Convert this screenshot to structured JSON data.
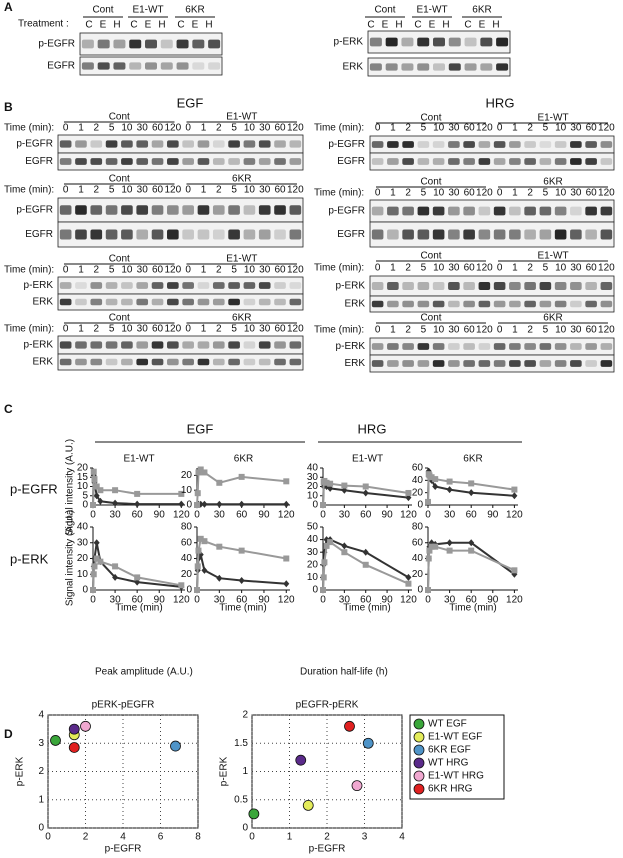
{
  "panel_a": {
    "label": "A",
    "treatment": "Treatment :",
    "lanes": [
      "C",
      "E",
      "H"
    ],
    "groups": [
      "Cont",
      "E1-WT",
      "6KR"
    ],
    "left_rows": [
      "p-EGFR",
      "EGFR"
    ],
    "right_rows": [
      "p-ERK",
      "ERK"
    ]
  },
  "panel_b": {
    "label": "B",
    "titles": [
      "EGF",
      "HRG"
    ],
    "time_label": "Time (min):",
    "lanes": [
      0,
      1,
      2,
      5,
      10,
      30,
      60,
      120
    ],
    "blots": [
      {
        "groups": [
          "Cont",
          "E1-WT"
        ],
        "rows": [
          "p-EGFR",
          "EGFR"
        ]
      },
      {
        "groups": [
          "Cont",
          "6KR"
        ],
        "rows": [
          "p-EGFR",
          "EGFR"
        ]
      },
      {
        "groups": [
          "Cont",
          "E1-WT"
        ],
        "rows": [
          "p-ERK",
          "ERK"
        ]
      },
      {
        "groups": [
          "Cont",
          "6KR"
        ],
        "rows": [
          "p-ERK",
          "ERK"
        ]
      },
      {
        "groups": [
          "Cont",
          "E1-WT"
        ],
        "rows": [
          "p-EGFR",
          "EGFR"
        ]
      },
      {
        "groups": [
          "Cont",
          "6KR"
        ],
        "rows": [
          "p-EGFR",
          "EGFR"
        ]
      },
      {
        "groups": [
          "Cont",
          "E1-WT"
        ],
        "rows": [
          "p-ERK",
          "ERK"
        ]
      },
      {
        "groups": [
          "Cont",
          "6KR"
        ],
        "rows": [
          "p-ERK",
          "ERK"
        ]
      }
    ]
  },
  "panel_c": {
    "label": "C",
    "stimuli": [
      "EGF",
      "HRG"
    ],
    "rows": [
      "p-EGFR",
      "p-ERK"
    ],
    "ylabel": "Signal intensity (A.U.)",
    "xlabel": "Time (min)"
  },
  "panel_d": {
    "label": "D",
    "headers": [
      "Peak amplitude (A.U.)",
      "Duration half-life (h)"
    ]
  },
  "chart_data": [
    {
      "type": "line",
      "title": "E1-WT",
      "x": [
        0,
        1,
        2,
        5,
        10,
        30,
        60,
        120
      ],
      "xlim": [
        0,
        125
      ],
      "xticks": [
        0,
        30,
        60,
        90,
        120
      ],
      "ylim": [
        0,
        20
      ],
      "yticks": [
        0,
        5,
        10,
        15,
        20
      ],
      "series": [
        {
          "color": "#333333",
          "marker": "diamond",
          "values": [
            0,
            16,
            12,
            5,
            2,
            1,
            0.5,
            0.5
          ]
        },
        {
          "color": "#999999",
          "marker": "square",
          "values": [
            0,
            18,
            14,
            10,
            8,
            8,
            6,
            6
          ]
        }
      ]
    },
    {
      "type": "line",
      "title": "6KR",
      "x": [
        0,
        1,
        2,
        5,
        10,
        30,
        60,
        120
      ],
      "xlim": [
        0,
        125
      ],
      "xticks": [
        0,
        30,
        60,
        90,
        120
      ],
      "ylim": [
        0,
        25
      ],
      "yticks": [
        0,
        10,
        20
      ],
      "series": [
        {
          "color": "#333333",
          "marker": "diamond",
          "values": [
            0,
            0.5,
            0.5,
            0.5,
            0.5,
            0.5,
            0.5,
            0.5
          ]
        },
        {
          "color": "#999999",
          "marker": "square",
          "values": [
            0,
            8,
            22,
            24,
            22,
            15,
            19,
            16
          ]
        }
      ]
    },
    {
      "type": "line",
      "title": "E1-WT",
      "x": [
        0,
        1,
        2,
        5,
        10,
        30,
        60,
        120
      ],
      "xlim": [
        0,
        125
      ],
      "xticks": [
        0,
        30,
        60,
        90,
        120
      ],
      "ylim": [
        0,
        40
      ],
      "yticks": [
        0,
        10,
        20,
        30,
        40
      ],
      "series": [
        {
          "color": "#333333",
          "marker": "diamond",
          "values": [
            0,
            20,
            22,
            20,
            18,
            16,
            13,
            8
          ]
        },
        {
          "color": "#999999",
          "marker": "square",
          "values": [
            0,
            25,
            26,
            24,
            23,
            21,
            20,
            13
          ]
        }
      ]
    },
    {
      "type": "line",
      "title": "6KR",
      "x": [
        0,
        1,
        2,
        5,
        10,
        30,
        60,
        120
      ],
      "xlim": [
        0,
        125
      ],
      "xticks": [
        0,
        30,
        60,
        90,
        120
      ],
      "ylim": [
        0,
        60
      ],
      "yticks": [
        0,
        20,
        40,
        60
      ],
      "series": [
        {
          "color": "#333333",
          "marker": "diamond",
          "values": [
            5,
            55,
            50,
            40,
            30,
            25,
            20,
            15
          ]
        },
        {
          "color": "#999999",
          "marker": "square",
          "values": [
            5,
            50,
            48,
            45,
            42,
            38,
            35,
            25
          ]
        }
      ]
    },
    {
      "type": "line",
      "x": [
        0,
        1,
        2,
        5,
        10,
        30,
        60,
        120
      ],
      "xlim": [
        0,
        125
      ],
      "xticks": [
        0,
        30,
        60,
        90,
        120
      ],
      "ylim": [
        0,
        40
      ],
      "yticks": [
        0,
        10,
        20,
        30,
        40
      ],
      "series": [
        {
          "color": "#333333",
          "marker": "diamond",
          "values": [
            0,
            15,
            20,
            30,
            18,
            8,
            5,
            2
          ]
        },
        {
          "color": "#999999",
          "marker": "square",
          "values": [
            0,
            10,
            15,
            20,
            18,
            15,
            8,
            3
          ]
        }
      ]
    },
    {
      "type": "line",
      "x": [
        0,
        1,
        2,
        5,
        10,
        30,
        60,
        120
      ],
      "xlim": [
        0,
        125
      ],
      "xticks": [
        0,
        30,
        60,
        90,
        120
      ],
      "ylim": [
        0,
        80
      ],
      "yticks": [
        0,
        20,
        40,
        60,
        80
      ],
      "series": [
        {
          "color": "#333333",
          "marker": "diamond",
          "values": [
            0,
            25,
            40,
            45,
            25,
            15,
            12,
            8
          ]
        },
        {
          "color": "#999999",
          "marker": "square",
          "values": [
            0,
            30,
            50,
            65,
            62,
            55,
            50,
            40
          ]
        }
      ]
    },
    {
      "type": "line",
      "x": [
        0,
        1,
        2,
        5,
        10,
        30,
        60,
        120
      ],
      "xlim": [
        0,
        125
      ],
      "xticks": [
        0,
        30,
        60,
        90,
        120
      ],
      "ylim": [
        0,
        50
      ],
      "yticks": [
        0,
        10,
        20,
        30,
        40,
        50
      ],
      "series": [
        {
          "color": "#333333",
          "marker": "diamond",
          "values": [
            0,
            20,
            30,
            40,
            40,
            35,
            30,
            10
          ]
        },
        {
          "color": "#999999",
          "marker": "square",
          "values": [
            0,
            10,
            22,
            35,
            38,
            30,
            20,
            5
          ]
        }
      ]
    },
    {
      "type": "line",
      "x": [
        0,
        1,
        2,
        5,
        10,
        30,
        60,
        120
      ],
      "xlim": [
        0,
        125
      ],
      "xticks": [
        0,
        30,
        60,
        90,
        120
      ],
      "ylim": [
        0,
        80
      ],
      "yticks": [
        0,
        20,
        40,
        60,
        80
      ],
      "series": [
        {
          "color": "#333333",
          "marker": "diamond",
          "values": [
            0,
            40,
            55,
            60,
            58,
            60,
            60,
            20
          ]
        },
        {
          "color": "#999999",
          "marker": "square",
          "values": [
            0,
            40,
            50,
            55,
            55,
            50,
            50,
            25
          ]
        }
      ]
    },
    {
      "type": "scatter",
      "title": "pERK-pEGFR",
      "xlabel": "p-EGFR",
      "ylabel": "p-ERK",
      "xlim": [
        0,
        8
      ],
      "xticks": [
        0,
        2,
        4,
        6,
        8
      ],
      "ylim": [
        0,
        4
      ],
      "yticks": [
        0,
        1,
        2,
        3,
        4
      ],
      "grid": true,
      "series": [
        {
          "color": "#3aa63a",
          "x": [
            0.4
          ],
          "values": [
            3.1
          ]
        },
        {
          "color": "#e4ec5a",
          "x": [
            1.4
          ],
          "values": [
            3.3
          ]
        },
        {
          "color": "#4f94c8",
          "x": [
            6.8
          ],
          "values": [
            2.9
          ]
        },
        {
          "color": "#5a2a8a",
          "x": [
            1.4
          ],
          "values": [
            3.5
          ]
        },
        {
          "color": "#f0a8d0",
          "x": [
            2.0
          ],
          "values": [
            3.6
          ]
        },
        {
          "color": "#e02020",
          "x": [
            1.4
          ],
          "values": [
            2.85
          ]
        }
      ]
    },
    {
      "type": "scatter",
      "title": "pEGFR-pERK",
      "xlabel": "p-EGFR",
      "ylabel": "p-ERK",
      "xlim": [
        0,
        4
      ],
      "xticks": [
        0,
        1,
        2,
        3,
        4
      ],
      "ylim": [
        0,
        2
      ],
      "yticks": [
        0,
        0.5,
        1,
        1.5,
        2
      ],
      "grid": true,
      "legend": "right",
      "series": [
        {
          "name": "WT EGF",
          "color": "#3aa63a",
          "x": [
            0.05
          ],
          "values": [
            0.25
          ]
        },
        {
          "name": "E1-WT EGF",
          "color": "#e4ec5a",
          "x": [
            1.5
          ],
          "values": [
            0.4
          ]
        },
        {
          "name": "6KR EGF",
          "color": "#4f94c8",
          "x": [
            3.1
          ],
          "values": [
            1.5
          ]
        },
        {
          "name": "WT HRG",
          "color": "#5a2a8a",
          "x": [
            1.3
          ],
          "values": [
            1.2
          ]
        },
        {
          "name": "E1-WT HRG",
          "color": "#f0a8d0",
          "x": [
            2.8
          ],
          "values": [
            0.75
          ]
        },
        {
          "name": "6KR HRG",
          "color": "#e02020",
          "x": [
            2.6
          ],
          "values": [
            1.8
          ]
        }
      ]
    }
  ]
}
